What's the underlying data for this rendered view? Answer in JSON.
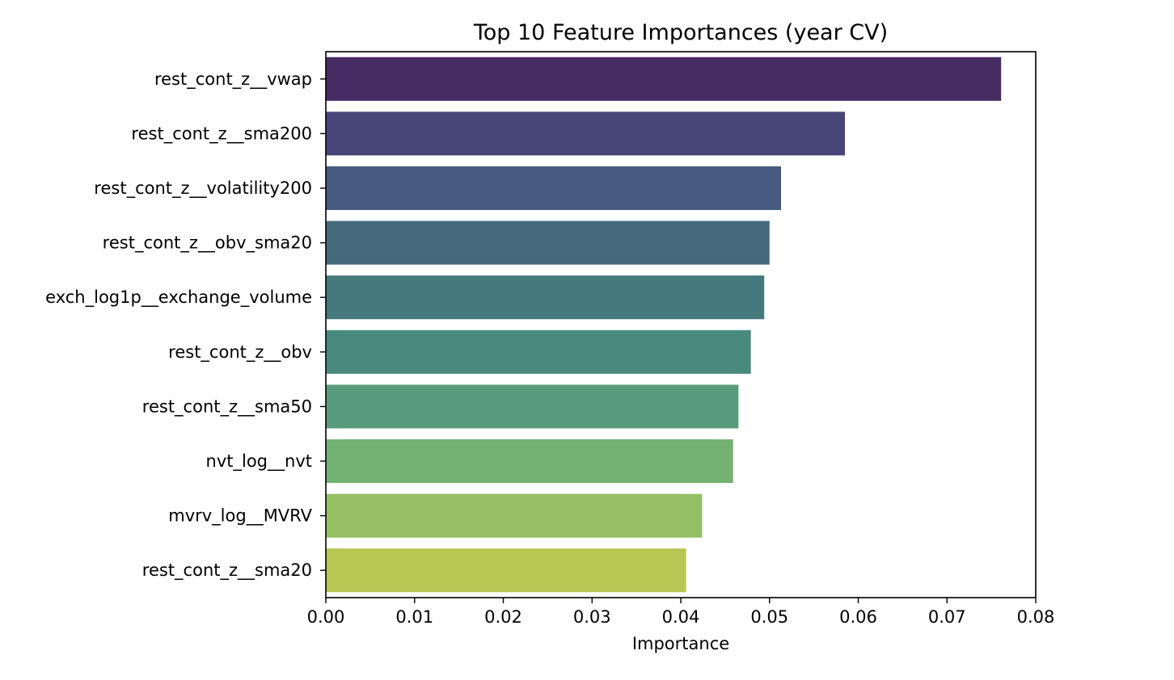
{
  "chart_data": {
    "type": "bar",
    "orientation": "horizontal",
    "title": "Top 10 Feature Importances (year CV)",
    "xlabel": "Importance",
    "ylabel": "",
    "xlim": [
      0,
      0.08
    ],
    "xticks": [
      "0.00",
      "0.01",
      "0.02",
      "0.03",
      "0.04",
      "0.05",
      "0.06",
      "0.07",
      "0.08"
    ],
    "grid": false,
    "categories": [
      "rest_cont_z__vwap",
      "rest_cont_z__sma200",
      "rest_cont_z__volatility200",
      "rest_cont_z__obv_sma20",
      "exch_log1p__exchange_volume",
      "rest_cont_z__obv",
      "rest_cont_z__sma50",
      "nvt_log__nvt",
      "mvrv_log__MVRV",
      "rest_cont_z__sma20"
    ],
    "values": [
      0.0761,
      0.0585,
      0.0513,
      0.05,
      0.0494,
      0.0479,
      0.0465,
      0.0459,
      0.0424,
      0.0406
    ],
    "colors": [
      "#472c64",
      "#484679",
      "#475a80",
      "#446a7c",
      "#45797d",
      "#4a8a7e",
      "#599c7b",
      "#74b274",
      "#94c063",
      "#b6c752"
    ]
  }
}
